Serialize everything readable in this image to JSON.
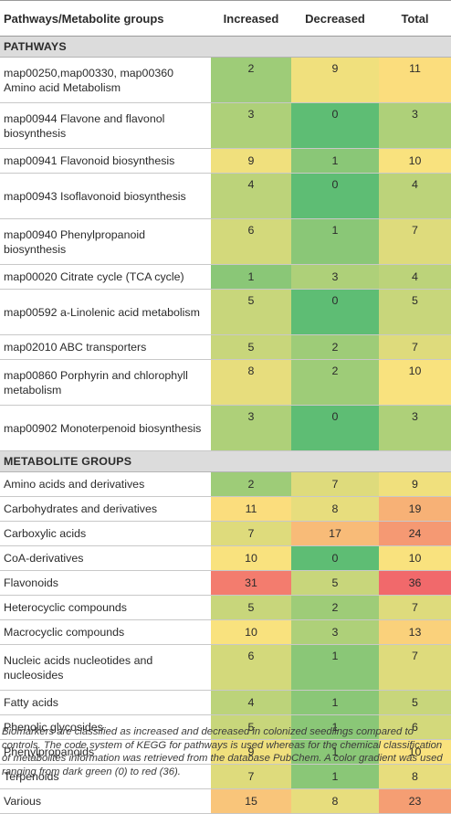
{
  "header": {
    "col_name": "Pathways/Metabolite groups",
    "col_increased": "Increased",
    "col_decreased": "Decreased",
    "col_total": "Total"
  },
  "sections": [
    {
      "title": "PATHWAYS",
      "rows": [
        {
          "name": "map00250,map00330, map00360 Amino acid Metabolism",
          "increased": "2",
          "decreased": "9",
          "total": "11",
          "two_line": true
        },
        {
          "name": "map00944 Flavone and flavonol biosynthesis",
          "increased": "3",
          "decreased": "0",
          "total": "3",
          "two_line": true
        },
        {
          "name": "map00941 Flavonoid biosynthesis",
          "increased": "9",
          "decreased": "1",
          "total": "10",
          "two_line": false
        },
        {
          "name": "map00943 Isoflavonoid biosynthesis",
          "increased": "4",
          "decreased": "0",
          "total": "4",
          "two_line": true
        },
        {
          "name": "map00940 Phenylpropanoid biosynthesis",
          "increased": "6",
          "decreased": "1",
          "total": "7",
          "two_line": true
        },
        {
          "name": "map00020 Citrate cycle (TCA cycle)",
          "increased": "1",
          "decreased": "3",
          "total": "4",
          "two_line": false
        },
        {
          "name": "map00592 a-Linolenic acid metabolism",
          "increased": "5",
          "decreased": "0",
          "total": "5",
          "two_line": true
        },
        {
          "name": "map02010 ABC transporters",
          "increased": "5",
          "decreased": "2",
          "total": "7",
          "two_line": false
        },
        {
          "name": "map00860 Porphyrin and chlorophyll metabolism",
          "increased": "8",
          "decreased": "2",
          "total": "10",
          "two_line": true
        },
        {
          "name": "map00902 Monoterpenoid biosynthesis",
          "increased": "3",
          "decreased": "0",
          "total": "3",
          "two_line": true
        }
      ]
    },
    {
      "title": "METABOLITE GROUPS",
      "rows": [
        {
          "name": "Amino acids and derivatives",
          "increased": "2",
          "decreased": "7",
          "total": "9",
          "two_line": false
        },
        {
          "name": "Carbohydrates and derivatives",
          "increased": "11",
          "decreased": "8",
          "total": "19",
          "two_line": false
        },
        {
          "name": "Carboxylic acids",
          "increased": "7",
          "decreased": "17",
          "total": "24",
          "two_line": false
        },
        {
          "name": "CoA-derivatives",
          "increased": "10",
          "decreased": "0",
          "total": "10",
          "two_line": false
        },
        {
          "name": "Flavonoids",
          "increased": "31",
          "decreased": "5",
          "total": "36",
          "two_line": false
        },
        {
          "name": "Heterocyclic compounds",
          "increased": "5",
          "decreased": "2",
          "total": "7",
          "two_line": false
        },
        {
          "name": "Macrocyclic compounds",
          "increased": "10",
          "decreased": "3",
          "total": "13",
          "two_line": false
        },
        {
          "name": "Nucleic acids nucleotides and nucleosides",
          "increased": "6",
          "decreased": "1",
          "total": "7",
          "two_line": true
        },
        {
          "name": "Fatty acids",
          "increased": "4",
          "decreased": "1",
          "total": "5",
          "two_line": false
        },
        {
          "name": "Phenolic glycosides",
          "increased": "5",
          "decreased": "1",
          "total": "6",
          "two_line": false
        },
        {
          "name": "Phenylpropanoids",
          "increased": "9",
          "decreased": "1",
          "total": "10",
          "two_line": false
        },
        {
          "name": "Terpenoids",
          "increased": "7",
          "decreased": "1",
          "total": "8",
          "two_line": false
        },
        {
          "name": "Various",
          "increased": "15",
          "decreased": "8",
          "total": "23",
          "two_line": false
        }
      ]
    }
  ],
  "caption": "Biomarkers are classified as increased and decreased in colonized seedlings compared to controls. The code system of KEGG for pathways is used whereas for the chemical classification of metabolites information was retrieved from the database PubChem. A color gradient was used ranging from dark green (0) to red (36).",
  "colors": {
    "scale_min": "#5ebd74",
    "scale_mid": "#fbe27e",
    "scale_max": "#f1696b",
    "section_bg": "#dcdcdc"
  }
}
